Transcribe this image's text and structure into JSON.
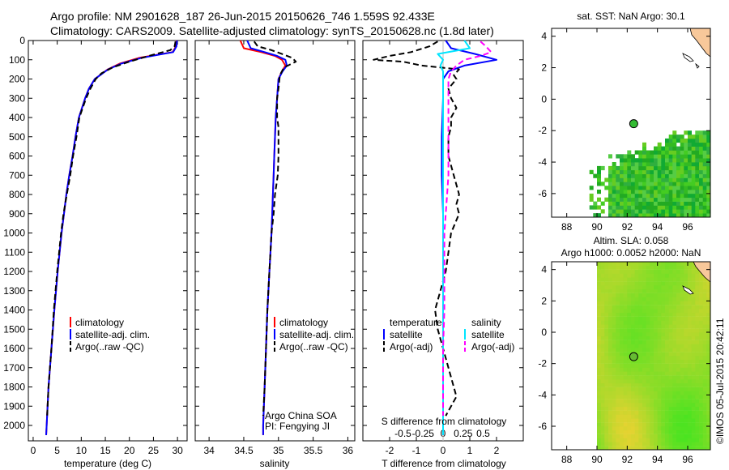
{
  "title": {
    "line1": "Argo profile: NM 2901628_187 26-Jun-2015 20150626_746 1.559S 92.433E",
    "line2": "Climatology: CARS2009. Satellite-adjusted climatology: synTS_20150628.nc (1.8d later)"
  },
  "credit": "©IMOS 05-Jul-2015 20:42:11",
  "colors": {
    "climatology": "#ff0000",
    "satellite": "#0000ff",
    "argo": "#000000",
    "sal_satellite": "#00e5ff",
    "sal_argo": "#ff00ff",
    "land": "#f8c89a"
  },
  "chart_data": [
    {
      "type": "line",
      "name": "temperature-profile",
      "xlabel": "temperature (deg C)",
      "ylabel": "",
      "xlim": [
        -1,
        32
      ],
      "ylim": [
        2080,
        0
      ],
      "xticks": [
        0,
        5,
        10,
        15,
        20,
        25,
        30
      ],
      "yticks": [
        0,
        100,
        200,
        300,
        400,
        500,
        600,
        700,
        800,
        900,
        1000,
        1100,
        1200,
        1300,
        1400,
        1500,
        1600,
        1700,
        1800,
        1900,
        2000
      ],
      "legend": [
        "climatology",
        "satellite-adj. clim.",
        "Argo(..raw -QC)"
      ],
      "series": [
        {
          "name": "climatology",
          "style": "solid",
          "depth": [
            0,
            30,
            60,
            90,
            120,
            150,
            200,
            250,
            300,
            400,
            500,
            600,
            700,
            800,
            900,
            1000,
            1200,
            1400,
            1600,
            1800,
            2000,
            2050
          ],
          "values": [
            29.8,
            29.7,
            29,
            22,
            18,
            15.5,
            12.8,
            11.6,
            10.8,
            9.5,
            8.8,
            8.2,
            7.5,
            6.9,
            6.4,
            5.9,
            5.1,
            4.4,
            3.8,
            3.2,
            2.8,
            2.7
          ]
        },
        {
          "name": "satellite-adj. clim.",
          "style": "solid",
          "depth": [
            0,
            30,
            60,
            90,
            120,
            150,
            200,
            250,
            300,
            400,
            500,
            600,
            700,
            800,
            900,
            1000,
            1200,
            1400,
            1600,
            1800,
            2000,
            2050
          ],
          "values": [
            29.9,
            29.8,
            29.1,
            22.5,
            18.3,
            15.6,
            12.8,
            11.6,
            10.8,
            9.5,
            8.8,
            8.2,
            7.5,
            6.9,
            6.4,
            5.9,
            5.1,
            4.4,
            3.8,
            3.2,
            2.8,
            2.7
          ]
        },
        {
          "name": "Argo(..raw -QC)",
          "style": "dashed",
          "depth": [
            5,
            30,
            50,
            80,
            110,
            140,
            170,
            200,
            250,
            300,
            350,
            400,
            500,
            600,
            700,
            800,
            900,
            1000,
            1200,
            1400,
            1600,
            1800,
            1950
          ],
          "values": [
            29.6,
            29.4,
            28.5,
            24,
            20,
            16.5,
            14.2,
            13,
            11.9,
            11,
            10.3,
            9.6,
            9,
            8.3,
            7.7,
            7,
            6.3,
            5.8,
            5,
            4.3,
            3.8,
            3.2,
            2.9
          ]
        }
      ]
    },
    {
      "type": "line",
      "name": "salinity-profile",
      "xlabel": "salinity",
      "xlim": [
        33.8,
        36.1
      ],
      "ylim": [
        2080,
        0
      ],
      "xticks": [
        34,
        34.5,
        35,
        35.5,
        36
      ],
      "legend": [
        "climatology",
        "satellite-adj. clim.",
        "Argo(..raw -QC)"
      ],
      "annotations": [
        "Argo China SOA",
        "PI: Fengying JI"
      ],
      "series": [
        {
          "name": "climatology",
          "style": "solid",
          "depth": [
            0,
            40,
            60,
            80,
            100,
            130,
            160,
            200,
            300,
            400,
            500,
            600,
            700,
            800,
            900,
            1000,
            1200,
            1400,
            1600,
            1800,
            2000,
            2050
          ],
          "values": [
            34.45,
            34.5,
            34.75,
            34.95,
            35.05,
            35.1,
            35.05,
            35.0,
            34.98,
            34.96,
            34.95,
            34.94,
            34.93,
            34.92,
            34.91,
            34.9,
            34.87,
            34.84,
            34.82,
            34.8,
            34.78,
            34.78
          ]
        },
        {
          "name": "satellite-adj. clim.",
          "style": "solid",
          "depth": [
            0,
            40,
            60,
            80,
            100,
            130,
            160,
            200,
            300,
            400,
            500,
            600,
            700,
            800,
            900,
            1000,
            1200,
            1400,
            1600,
            1800,
            2000,
            2050
          ],
          "values": [
            34.55,
            34.6,
            34.8,
            34.98,
            35.1,
            35.12,
            35.06,
            35.0,
            34.98,
            34.96,
            34.95,
            34.94,
            34.93,
            34.92,
            34.91,
            34.9,
            34.87,
            34.84,
            34.82,
            34.8,
            34.78,
            34.78
          ]
        },
        {
          "name": "Argo(..raw -QC)",
          "style": "dashed",
          "depth": [
            5,
            30,
            50,
            70,
            90,
            110,
            140,
            180,
            250,
            300,
            400,
            450,
            500,
            600,
            700,
            800,
            900,
            1000,
            1200,
            1400,
            1600,
            1800,
            1950
          ],
          "values": [
            34.65,
            34.7,
            34.9,
            35.05,
            35.2,
            35.25,
            35.08,
            35.02,
            35.0,
            34.98,
            34.98,
            35.0,
            35.0,
            35.0,
            34.99,
            34.95,
            34.93,
            34.9,
            34.87,
            34.84,
            34.82,
            34.8,
            34.78
          ]
        }
      ]
    },
    {
      "type": "line",
      "name": "difference-profile",
      "xlabel_bottom": "T difference from climatology",
      "xlabel_top": "S difference from climatology",
      "xlim": [
        -3,
        3
      ],
      "ylim": [
        2080,
        0
      ],
      "xticks": [
        -2,
        -1,
        0,
        1,
        2
      ],
      "xticks_top": [
        "-0.5",
        "-0.25",
        "0",
        "0.25",
        "0.5"
      ],
      "legend_temperature": [
        "temperature",
        "satellite",
        "Argo(-adj)"
      ],
      "legend_salinity": [
        "salinity",
        "satellite",
        "Argo(-adj)"
      ],
      "series": [
        {
          "name": "temperature satellite",
          "style": "solid",
          "depth": [
            0,
            40,
            70,
            100,
            130,
            160,
            200,
            300,
            500,
            700,
            900,
            1000,
            1200,
            1400,
            1600,
            1800,
            2050
          ],
          "values": [
            0.1,
            0.3,
            1.2,
            2.0,
            0.8,
            0.2,
            0.0,
            0.0,
            -0.05,
            -0.05,
            0.0,
            0.0,
            0.0,
            0.0,
            0.0,
            0.0,
            0.0
          ]
        },
        {
          "name": "temperature Argo(-adj)",
          "style": "dashed",
          "depth": [
            5,
            30,
            60,
            80,
            100,
            110,
            130,
            150,
            180,
            200,
            250,
            300,
            350,
            400,
            450,
            500,
            600,
            700,
            800,
            850,
            900,
            1000,
            1100,
            1200,
            1300,
            1400,
            1500,
            1600,
            1700,
            1800,
            1850,
            1900,
            1950
          ],
          "values": [
            -0.2,
            -0.5,
            -1.2,
            -2.0,
            -2.6,
            -1.5,
            -0.8,
            0.6,
            0.4,
            0.5,
            0.2,
            0.3,
            0.5,
            0.3,
            0.3,
            0.2,
            0.2,
            0.4,
            0.6,
            0.5,
            0.6,
            0.3,
            0.2,
            0.1,
            -0.1,
            -0.3,
            -0.2,
            0.0,
            0.2,
            0.4,
            0.5,
            0.3,
            0.1
          ]
        },
        {
          "name": "salinity satellite",
          "style": "solid",
          "depth": [
            0,
            40,
            70,
            100,
            130,
            160,
            200,
            300,
            500,
            700,
            900,
            1000,
            1200,
            1400,
            1600,
            1800,
            2050
          ],
          "values": [
            0.8,
            1.0,
            -0.2,
            0.0,
            -0.1,
            0.0,
            0.0,
            0.0,
            0.0,
            0.0,
            0.0,
            0.0,
            0.0,
            0.0,
            0.0,
            0.0,
            0.0
          ]
        },
        {
          "name": "salinity Argo(-adj)",
          "style": "dashed",
          "depth": [
            5,
            30,
            60,
            80,
            100,
            130,
            160,
            200,
            300,
            400,
            500,
            600,
            700,
            800,
            900,
            1000,
            1200,
            1400,
            1600,
            1800,
            1950
          ],
          "values": [
            1.4,
            1.6,
            1.8,
            1.4,
            0.8,
            0.5,
            0.3,
            0.2,
            0.2,
            0.2,
            0.2,
            0.2,
            0.2,
            0.15,
            0.1,
            0.05,
            0.05,
            0.05,
            0.0,
            0.0,
            0.0
          ]
        }
      ]
    },
    {
      "type": "heatmap",
      "name": "sst-map",
      "title": "sat. SST: NaN Argo: 30.1",
      "xlim": [
        87,
        97.5
      ],
      "ylim": [
        -7.5,
        4.5
      ],
      "xticks": [
        88,
        90,
        92,
        94,
        96
      ],
      "yticks": [
        -6,
        -4,
        -2,
        0,
        2,
        4
      ],
      "argo_position": [
        92.43,
        -1.56
      ]
    },
    {
      "type": "heatmap",
      "name": "sla-map",
      "title_line1": "Altim. SLA: 0.058",
      "title_line2": "Argo h1000: 0.0052 h2000: NaN",
      "xlim": [
        87,
        97.5
      ],
      "ylim": [
        -7.5,
        4.5
      ],
      "xticks": [
        88,
        90,
        92,
        94,
        96
      ],
      "yticks": [
        -6,
        -4,
        -2,
        0,
        2,
        4
      ],
      "argo_position": [
        92.43,
        -1.56
      ]
    }
  ]
}
